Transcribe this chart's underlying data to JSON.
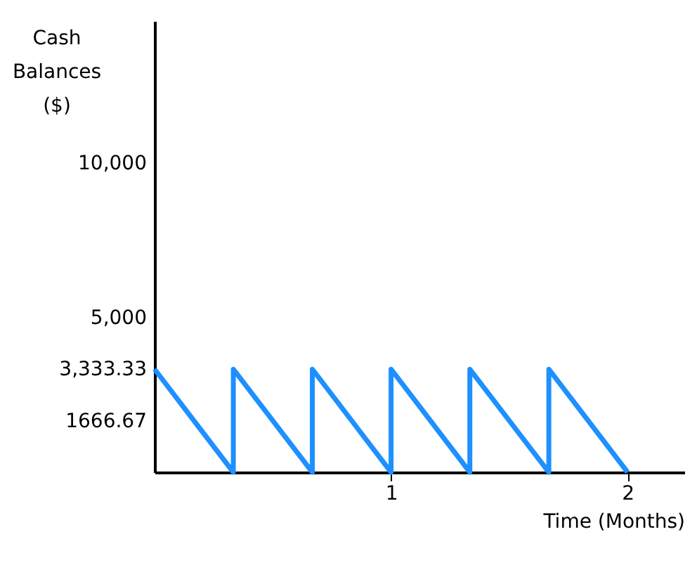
{
  "chart_data": {
    "type": "line",
    "xlabel": "Time (Months)",
    "ylabel": "Cash Balances ($)",
    "x": [
      0,
      0.333,
      0.333,
      0.667,
      0.667,
      1,
      1,
      1.333,
      1.333,
      1.667,
      1.667,
      2
    ],
    "series": [
      {
        "color": "#1e90ff",
        "values": [
          3333.33,
          0,
          3333.33,
          0,
          3333.33,
          0,
          3333.33,
          0,
          3333.33,
          0,
          3333.33,
          0
        ]
      }
    ],
    "xlim": [
      0,
      2.24
    ],
    "ylim": [
      0,
      14600
    ],
    "xticks": [
      1,
      2
    ],
    "yticks": [
      {
        "value": 1666.67,
        "label": "1666.67"
      },
      {
        "value": 3333.33,
        "label": "3,333.33"
      },
      {
        "value": 5000,
        "label": "5,000"
      },
      {
        "value": 10000,
        "label": "10,000"
      }
    ],
    "grid": false,
    "marker": "none",
    "line_style": "solid"
  }
}
